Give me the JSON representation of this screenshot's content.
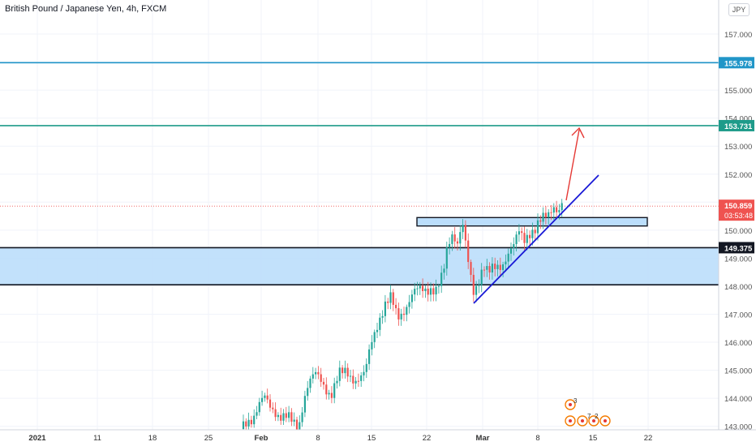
{
  "header": {
    "title": "British Pound / Japanese Yen, 4h, FXCM",
    "currency": "JPY"
  },
  "chart_data": {
    "type": "candlestick",
    "price_axis": {
      "ticks": [
        "157.000",
        "156.000",
        "155.000",
        "154.000",
        "153.000",
        "152.000",
        "151.000",
        "150.000",
        "149.000",
        "148.000",
        "147.000",
        "146.000",
        "145.000",
        "144.000",
        "143.000"
      ],
      "tick_values": [
        157,
        156,
        155,
        154,
        153,
        152,
        151,
        150,
        149,
        148,
        147,
        146,
        145,
        144,
        143
      ],
      "ylim": [
        142.9,
        158.1
      ]
    },
    "time_axis": {
      "ticks": [
        "2021",
        "11",
        "18",
        "25",
        "Feb",
        "8",
        "15",
        "22",
        "Mar",
        "8",
        "15",
        "22"
      ]
    },
    "levels": [
      {
        "label": "155.978",
        "price": 155.978,
        "color": "#2196c8"
      },
      {
        "label": "153.731",
        "price": 153.731,
        "color": "#1e9b8a"
      }
    ],
    "current_price": {
      "label": "150.859",
      "price": 150.859,
      "countdown": "03:53:48",
      "color": "#ef5350"
    },
    "zone": {
      "top_label": "149.375",
      "top": 149.375,
      "bottom": 148.05,
      "color": "#bbdefb"
    },
    "resistance_box": {
      "top": 150.45,
      "bottom": 150.15,
      "color": "#bbdefb"
    },
    "trendline": {
      "color": "#1a1ad6"
    },
    "arrow": {
      "color": "#e53935"
    },
    "colors": {
      "up": "#26a69a",
      "down": "#ef5350"
    },
    "event_badges": [
      "3",
      "7",
      "2"
    ]
  }
}
